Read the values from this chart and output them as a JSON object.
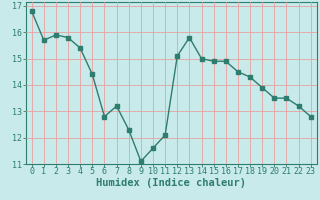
{
  "x": [
    0,
    1,
    2,
    3,
    4,
    5,
    6,
    7,
    8,
    9,
    10,
    11,
    12,
    13,
    14,
    15,
    16,
    17,
    18,
    19,
    20,
    21,
    22,
    23
  ],
  "y": [
    16.8,
    15.7,
    15.9,
    15.8,
    15.4,
    14.4,
    12.8,
    13.2,
    12.3,
    11.1,
    11.6,
    12.1,
    15.1,
    15.8,
    15.0,
    14.9,
    14.9,
    14.5,
    14.3,
    13.9,
    13.5,
    13.5,
    13.2,
    12.8
  ],
  "xlabel": "Humidex (Indice chaleur)",
  "ylim": [
    11,
    17
  ],
  "xlim_min": -0.5,
  "xlim_max": 23.5,
  "yticks": [
    11,
    12,
    13,
    14,
    15,
    16,
    17
  ],
  "xticks": [
    0,
    1,
    2,
    3,
    4,
    5,
    6,
    7,
    8,
    9,
    10,
    11,
    12,
    13,
    14,
    15,
    16,
    17,
    18,
    19,
    20,
    21,
    22,
    23
  ],
  "line_color": "#2e7d6e",
  "marker": "s",
  "marker_size": 2.5,
  "bg_color": "#c8eaea",
  "grid_color": "#e8a0a0",
  "axes_color": "#2e7d6e",
  "tick_label_color": "#2e7d6e",
  "xlabel_color": "#2e7d6e",
  "xlabel_fontsize": 7.5,
  "tick_fontsize": 6
}
